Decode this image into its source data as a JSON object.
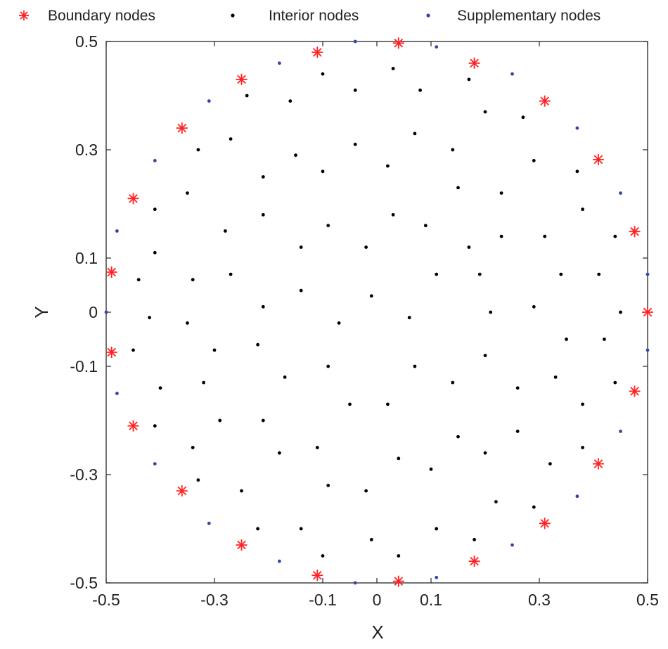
{
  "chart_data": {
    "type": "scatter",
    "xlabel": "X",
    "ylabel": "Y",
    "xlim": [
      -0.5,
      0.5
    ],
    "ylim": [
      -0.5,
      0.5
    ],
    "xticks": [
      -0.5,
      -0.3,
      -0.1,
      0,
      0.1,
      0.3,
      0.5
    ],
    "yticks": [
      -0.5,
      -0.3,
      -0.1,
      0,
      0.1,
      0.3,
      0.5
    ],
    "xtick_labels": [
      "-0.5",
      "-0.3",
      "-0.1",
      "0",
      "0.1",
      "0.3",
      "0.5"
    ],
    "ytick_labels": [
      "-0.5",
      "-0.3",
      "-0.1",
      "0",
      "0.1",
      "0.3",
      "0.5"
    ],
    "grid": false,
    "legend": "top",
    "series": [
      {
        "name": "Boundary nodes",
        "marker": "asterisk",
        "color": "#ff2222",
        "points": [
          [
            0.5,
            0
          ],
          [
            0.476,
            0.149
          ],
          [
            0.409,
            0.282
          ],
          [
            0.31,
            0.39
          ],
          [
            0.18,
            0.46
          ],
          [
            0.04,
            0.497
          ],
          [
            -0.11,
            0.48
          ],
          [
            -0.25,
            0.43
          ],
          [
            -0.36,
            0.34
          ],
          [
            -0.45,
            0.21
          ],
          [
            -0.49,
            0.074
          ],
          [
            -0.49,
            -0.074
          ],
          [
            -0.45,
            -0.21
          ],
          [
            -0.36,
            -0.33
          ],
          [
            -0.25,
            -0.43
          ],
          [
            -0.11,
            -0.486
          ],
          [
            0.04,
            -0.497
          ],
          [
            0.18,
            -0.46
          ],
          [
            0.31,
            -0.39
          ],
          [
            0.409,
            -0.28
          ],
          [
            0.476,
            -0.146
          ]
        ]
      },
      {
        "name": "Interior nodes",
        "marker": "dot",
        "color": "#000000",
        "points": [
          [
            0.03,
            0.45
          ],
          [
            -0.1,
            0.44
          ],
          [
            0.08,
            0.41
          ],
          [
            -0.04,
            0.41
          ],
          [
            -0.24,
            0.4
          ],
          [
            -0.16,
            0.39
          ],
          [
            0.17,
            0.43
          ],
          [
            0.27,
            0.36
          ],
          [
            0.2,
            0.37
          ],
          [
            -0.33,
            0.3
          ],
          [
            -0.27,
            0.32
          ],
          [
            -0.04,
            0.31
          ],
          [
            0.07,
            0.33
          ],
          [
            -0.15,
            0.29
          ],
          [
            0.14,
            0.3
          ],
          [
            0.29,
            0.28
          ],
          [
            -0.21,
            0.25
          ],
          [
            -0.1,
            0.26
          ],
          [
            0.02,
            0.27
          ],
          [
            0.37,
            0.26
          ],
          [
            0.15,
            0.23
          ],
          [
            0.23,
            0.22
          ],
          [
            -0.35,
            0.22
          ],
          [
            -0.41,
            0.19
          ],
          [
            0.03,
            0.18
          ],
          [
            -0.21,
            0.18
          ],
          [
            0.38,
            0.19
          ],
          [
            -0.09,
            0.16
          ],
          [
            0.09,
            0.16
          ],
          [
            -0.28,
            0.15
          ],
          [
            0.23,
            0.14
          ],
          [
            0.31,
            0.14
          ],
          [
            0.44,
            0.14
          ],
          [
            -0.14,
            0.12
          ],
          [
            -0.02,
            0.12
          ],
          [
            0.17,
            0.12
          ],
          [
            -0.41,
            0.11
          ],
          [
            0.11,
            0.07
          ],
          [
            0.19,
            0.07
          ],
          [
            0.34,
            0.07
          ],
          [
            -0.27,
            0.07
          ],
          [
            0.41,
            0.07
          ],
          [
            -0.44,
            0.06
          ],
          [
            -0.34,
            0.06
          ],
          [
            -0.14,
            0.04
          ],
          [
            -0.01,
            0.03
          ],
          [
            -0.21,
            0.01
          ],
          [
            0.29,
            0.01
          ],
          [
            0.45,
            0.0
          ],
          [
            0.21,
            0.0
          ],
          [
            0.06,
            -0.01
          ],
          [
            -0.42,
            -0.01
          ],
          [
            -0.35,
            -0.02
          ],
          [
            -0.07,
            -0.02
          ],
          [
            0.35,
            -0.05
          ],
          [
            0.42,
            -0.05
          ],
          [
            -0.22,
            -0.06
          ],
          [
            -0.3,
            -0.07
          ],
          [
            -0.45,
            -0.07
          ],
          [
            0.2,
            -0.08
          ],
          [
            0.07,
            -0.1
          ],
          [
            -0.09,
            -0.1
          ],
          [
            -0.17,
            -0.12
          ],
          [
            0.14,
            -0.13
          ],
          [
            0.33,
            -0.12
          ],
          [
            0.44,
            -0.13
          ],
          [
            -0.32,
            -0.13
          ],
          [
            -0.4,
            -0.14
          ],
          [
            0.26,
            -0.14
          ],
          [
            0.38,
            -0.17
          ],
          [
            0.02,
            -0.17
          ],
          [
            -0.05,
            -0.17
          ],
          [
            -0.29,
            -0.2
          ],
          [
            -0.21,
            -0.2
          ],
          [
            -0.41,
            -0.21
          ],
          [
            0.26,
            -0.22
          ],
          [
            0.15,
            -0.23
          ],
          [
            -0.34,
            -0.25
          ],
          [
            0.38,
            -0.25
          ],
          [
            -0.11,
            -0.25
          ],
          [
            -0.18,
            -0.26
          ],
          [
            0.2,
            -0.26
          ],
          [
            0.04,
            -0.27
          ],
          [
            0.32,
            -0.28
          ],
          [
            0.1,
            -0.29
          ],
          [
            -0.33,
            -0.31
          ],
          [
            -0.09,
            -0.32
          ],
          [
            -0.25,
            -0.33
          ],
          [
            -0.02,
            -0.33
          ],
          [
            0.22,
            -0.35
          ],
          [
            0.29,
            -0.36
          ],
          [
            -0.22,
            -0.4
          ],
          [
            -0.14,
            -0.4
          ],
          [
            0.11,
            -0.4
          ],
          [
            -0.01,
            -0.42
          ],
          [
            0.18,
            -0.42
          ],
          [
            -0.1,
            -0.45
          ],
          [
            0.04,
            -0.45
          ]
        ]
      },
      {
        "name": "Supplementary nodes",
        "marker": "dot",
        "color": "#3344aa",
        "points": [
          [
            -0.04,
            0.5
          ],
          [
            0.11,
            0.49
          ],
          [
            -0.18,
            0.46
          ],
          [
            0.25,
            0.44
          ],
          [
            -0.31,
            0.39
          ],
          [
            0.37,
            0.34
          ],
          [
            -0.41,
            0.28
          ],
          [
            0.45,
            0.22
          ],
          [
            -0.48,
            0.15
          ],
          [
            0.5,
            0.07
          ],
          [
            -0.5,
            0.0
          ],
          [
            0.5,
            -0.07
          ],
          [
            -0.48,
            -0.15
          ],
          [
            0.45,
            -0.22
          ],
          [
            -0.41,
            -0.28
          ],
          [
            0.37,
            -0.34
          ],
          [
            -0.31,
            -0.39
          ],
          [
            0.25,
            -0.43
          ],
          [
            -0.18,
            -0.46
          ],
          [
            0.11,
            -0.49
          ],
          [
            -0.04,
            -0.5
          ]
        ]
      }
    ]
  }
}
